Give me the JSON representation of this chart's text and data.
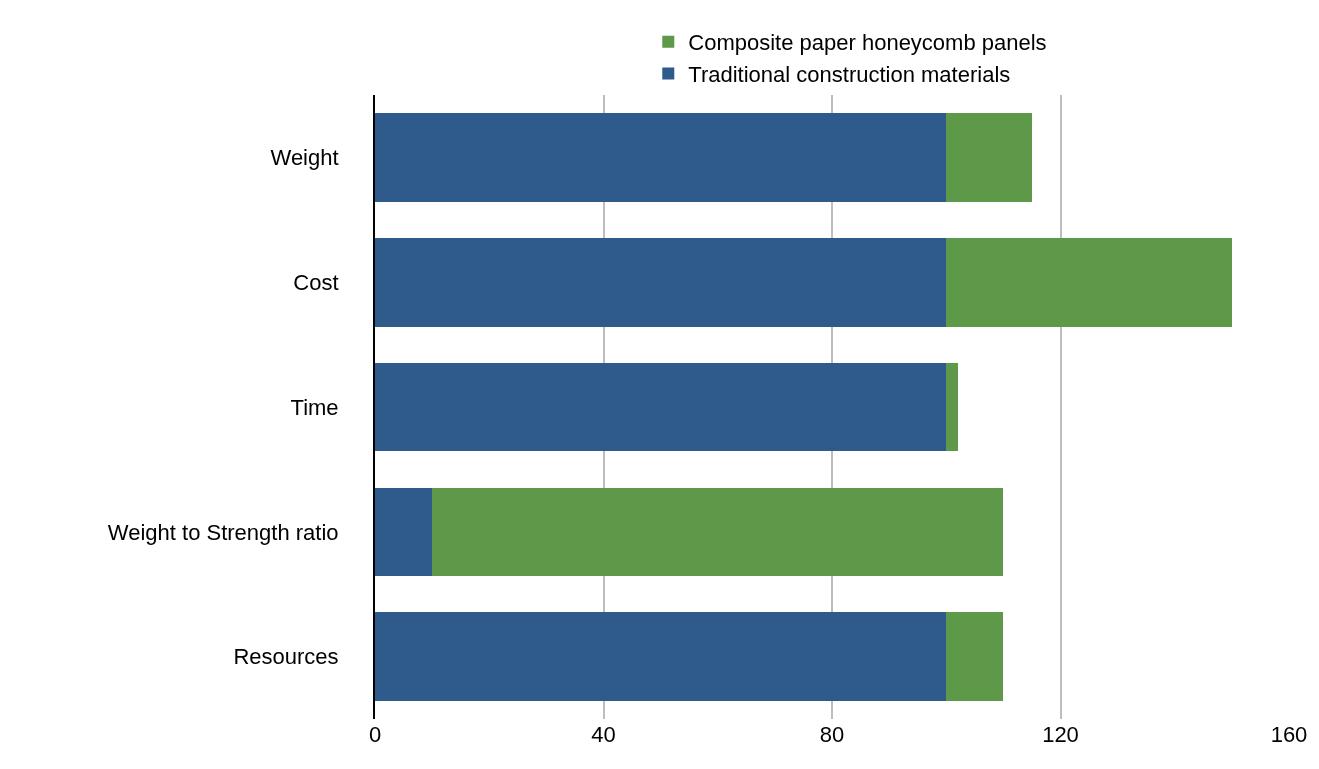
{
  "chart_data": {
    "type": "bar",
    "orientation": "horizontal",
    "stacked": true,
    "categories": [
      "Weight",
      "Cost",
      "Time",
      "Weight to Strength ratio",
      "Resources"
    ],
    "series": [
      {
        "name": "Traditional construction materials",
        "color": "#2f5a8c",
        "values": [
          100,
          100,
          100,
          10,
          100
        ]
      },
      {
        "name": "Composite paper honeycomb panels",
        "color": "#5e9849",
        "values": [
          15,
          50,
          2,
          100,
          10
        ]
      }
    ],
    "xlim": [
      0,
      160
    ],
    "xticks": [
      0,
      40,
      80,
      120,
      160
    ],
    "grid": "x",
    "legend": "top"
  }
}
